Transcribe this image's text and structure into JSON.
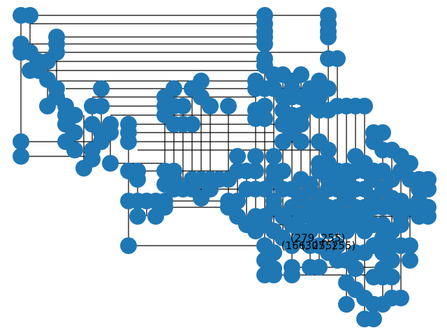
{
  "diagram": {
    "node_color": "#1f77b4",
    "edge_color": "#000000",
    "labels": [
      {
        "id": "label-1",
        "text": "(279, 255)"
      },
      {
        "id": "label-2",
        "text": "(166, 255)"
      },
      {
        "id": "label-3",
        "text": "(307, 255)"
      }
    ]
  }
}
